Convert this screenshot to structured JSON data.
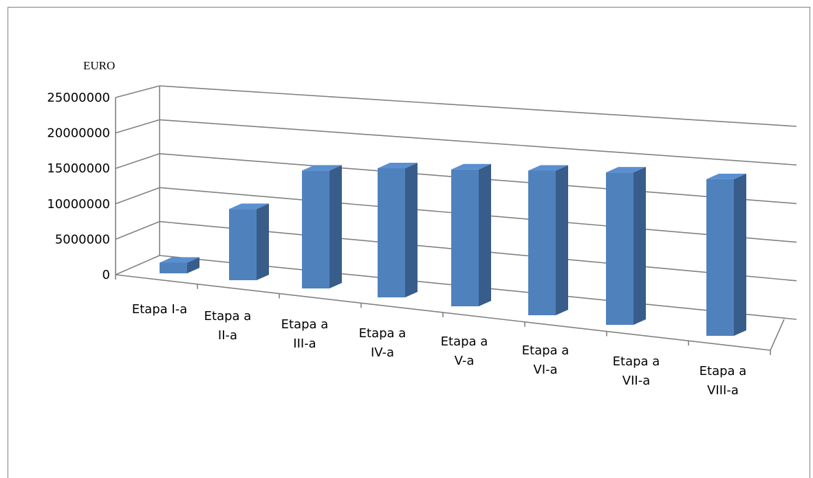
{
  "chart_data": {
    "type": "bar",
    "ylabel": "EURO",
    "categories": [
      [
        "Etapa I-a"
      ],
      [
        "Etapa a",
        "II-a"
      ],
      [
        "Etapa a",
        "III-a"
      ],
      [
        "Etapa a",
        "IV-a"
      ],
      [
        "Etapa a",
        "V-a"
      ],
      [
        "Etapa a",
        "VI-a"
      ],
      [
        "Etapa a",
        "VII-a"
      ],
      [
        "Etapa a",
        "VIII-a"
      ]
    ],
    "values": [
      1500000,
      10000000,
      16500000,
      18000000,
      19000000,
      20000000,
      21000000,
      21500000
    ],
    "ylim": [
      0,
      25000000
    ],
    "yticks": [
      "0",
      "5000000",
      "10000000",
      "15000000",
      "20000000",
      "25000000"
    ],
    "grid": true,
    "bar_color": "#4f81bd",
    "bar_side_color": "#385d8a",
    "bar_top_color": "#5a8fd0"
  }
}
